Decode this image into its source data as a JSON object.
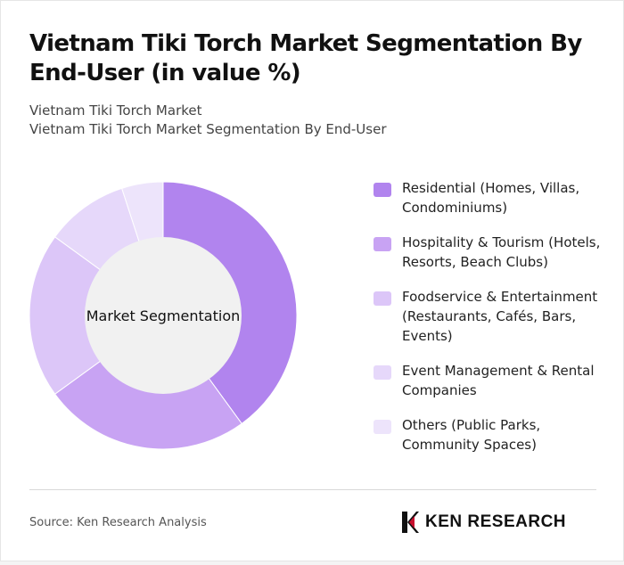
{
  "title": "Vietnam Tiki Torch Market Segmentation By End-User (in value %)",
  "subtitle_1": "Vietnam Tiki Torch Market",
  "subtitle_2": "Vietnam Tiki Torch Market Segmentation By End-User",
  "chart_data": {
    "type": "pie",
    "donut": true,
    "center_label": "Market Segmentation",
    "categories": [
      "Residential (Homes, Villas, Condominiums)",
      "Hospitality & Tourism (Hotels, Resorts, Beach Clubs)",
      "Foodservice & Entertainment (Restaurants, Cafés, Bars, Events)",
      "Event Management & Rental Companies",
      "Others (Public Parks, Community Spaces)"
    ],
    "values": [
      40,
      25,
      20,
      10,
      5
    ],
    "colors": [
      "#b184ee",
      "#c8a3f3",
      "#dcc6f8",
      "#e6d8fa",
      "#ede4fb"
    ],
    "legend_position": "right"
  },
  "footer": {
    "source": "Source: Ken Research Analysis",
    "logo_text": "KEN RESEARCH"
  }
}
